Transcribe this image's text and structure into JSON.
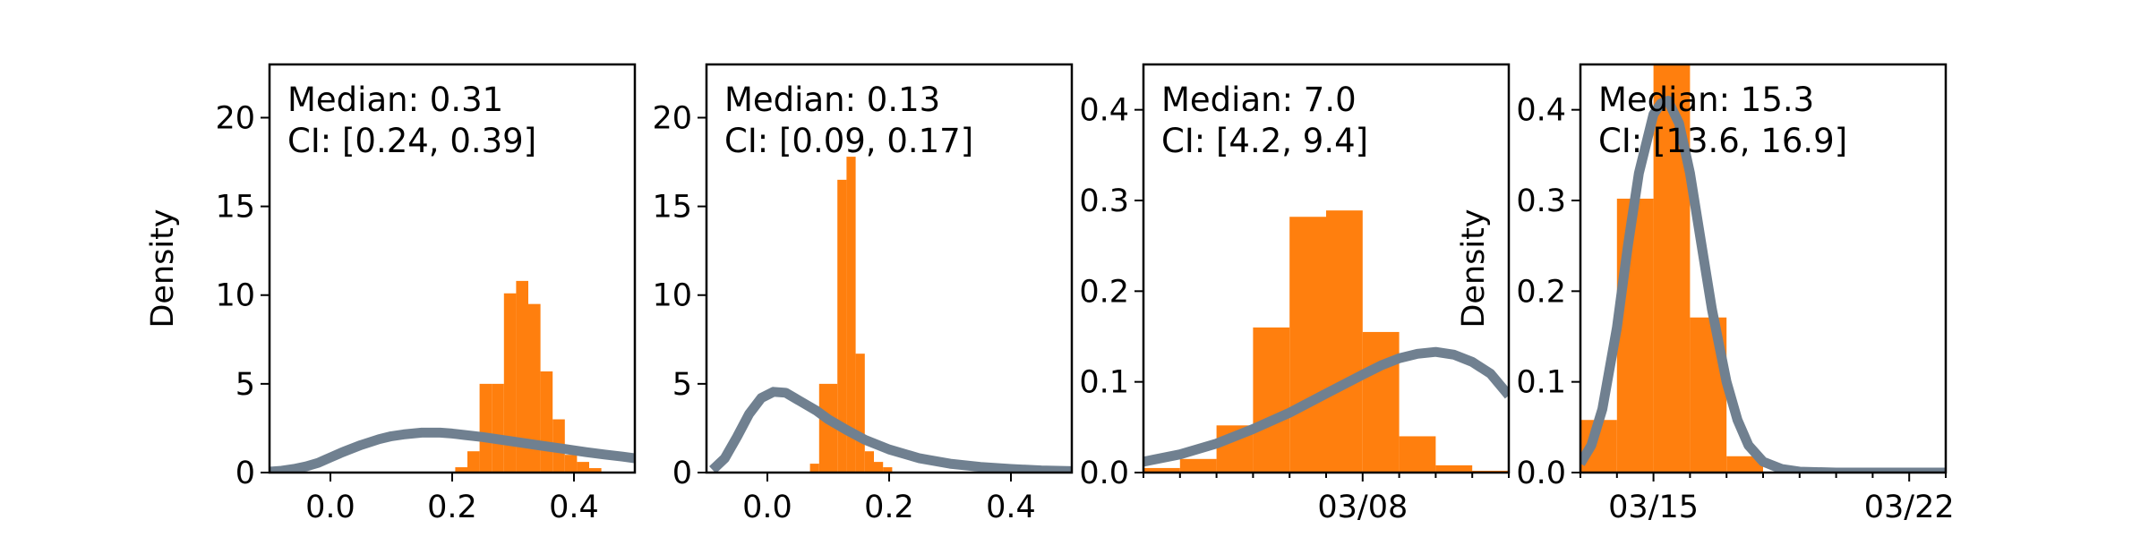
{
  "colors": {
    "histogram": "#ff7f0e",
    "curve": "#708090"
  },
  "chart_data": [
    {
      "type": "bar+line",
      "ylabel": "Density",
      "xlim": [
        -0.1,
        0.5
      ],
      "ylim": [
        0,
        23
      ],
      "xticks": [
        0.0,
        0.2,
        0.4
      ],
      "xticklabels": [
        "0.0",
        "0.2",
        "0.4"
      ],
      "yticks": [
        0,
        5,
        10,
        15,
        20
      ],
      "yticklabels": [
        "0",
        "5",
        "10",
        "15",
        "20"
      ],
      "annotation": [
        "Median: 0.31",
        "CI: [0.24, 0.39]"
      ],
      "histogram": {
        "edges": [
          0.205,
          0.225,
          0.245,
          0.265,
          0.285,
          0.305,
          0.325,
          0.345,
          0.365,
          0.385,
          0.405,
          0.425,
          0.445
        ],
        "values": [
          0.3,
          1.2,
          5.0,
          5.0,
          10.1,
          10.8,
          9.5,
          5.7,
          3.0,
          1.0,
          0.6,
          0.25
        ]
      },
      "curve": {
        "x": [
          -0.1,
          -0.08,
          -0.06,
          -0.04,
          -0.02,
          0.0,
          0.02,
          0.05,
          0.08,
          0.1,
          0.12,
          0.15,
          0.18,
          0.2,
          0.22,
          0.25,
          0.28,
          0.3,
          0.32,
          0.35,
          0.38,
          0.4,
          0.42,
          0.45,
          0.48,
          0.5
        ],
        "y": [
          0.05,
          0.1,
          0.2,
          0.35,
          0.55,
          0.85,
          1.15,
          1.55,
          1.88,
          2.05,
          2.15,
          2.25,
          2.25,
          2.2,
          2.12,
          2.0,
          1.85,
          1.75,
          1.65,
          1.5,
          1.35,
          1.25,
          1.15,
          1.02,
          0.9,
          0.8
        ]
      }
    },
    {
      "type": "bar+line",
      "ylabel": "",
      "xlim": [
        -0.1,
        0.5
      ],
      "ylim": [
        0,
        23
      ],
      "xticks": [
        0.0,
        0.2,
        0.4
      ],
      "xticklabels": [
        "0.0",
        "0.2",
        "0.4"
      ],
      "yticks": [
        0,
        5,
        10,
        15,
        20
      ],
      "yticklabels": [
        "0",
        "5",
        "10",
        "15",
        "20"
      ],
      "annotation": [
        "Median: 0.13",
        "CI: [0.09, 0.17]"
      ],
      "histogram": {
        "edges": [
          0.07,
          0.085,
          0.1,
          0.115,
          0.13,
          0.145,
          0.16,
          0.175,
          0.19,
          0.205
        ],
        "values": [
          0.5,
          5.0,
          5.0,
          16.5,
          17.8,
          6.7,
          1.2,
          0.6,
          0.3
        ]
      },
      "curve": {
        "x": [
          -0.09,
          -0.07,
          -0.05,
          -0.03,
          -0.01,
          0.01,
          0.03,
          0.05,
          0.08,
          0.1,
          0.13,
          0.16,
          0.2,
          0.25,
          0.3,
          0.35,
          0.4,
          0.45,
          0.5
        ],
        "y": [
          0.15,
          0.8,
          2.0,
          3.3,
          4.2,
          4.55,
          4.5,
          4.1,
          3.5,
          3.0,
          2.4,
          1.85,
          1.3,
          0.8,
          0.5,
          0.32,
          0.2,
          0.12,
          0.08
        ]
      }
    },
    {
      "type": "bar+line",
      "ylabel": "",
      "xlim": [
        0,
        10
      ],
      "ylim": [
        0,
        0.45
      ],
      "xticks": [
        6.0
      ],
      "xticklabels": [
        "03/08"
      ],
      "minor_xticks": [
        0,
        1,
        2,
        3,
        4,
        5,
        7,
        8,
        9,
        10
      ],
      "yticks": [
        0.0,
        0.1,
        0.2,
        0.3,
        0.4
      ],
      "yticklabels": [
        "0.0",
        "0.1",
        "0.2",
        "0.3",
        "0.4"
      ],
      "annotation": [
        "Median: 7.0",
        "CI: [4.2, 9.4]"
      ],
      "histogram": {
        "edges": [
          0.0,
          1.0,
          2.0,
          3.0,
          4.0,
          5.0,
          6.0,
          7.0,
          8.0,
          9.0,
          10.0
        ],
        "values": [
          0.005,
          0.015,
          0.052,
          0.16,
          0.282,
          0.289,
          0.155,
          0.04,
          0.008,
          0.002
        ]
      },
      "curve": {
        "x": [
          0,
          1,
          2,
          3,
          4,
          5,
          6,
          6.5,
          7,
          7.5,
          8,
          8.5,
          9,
          9.5,
          10
        ],
        "y": [
          0.012,
          0.02,
          0.032,
          0.048,
          0.066,
          0.087,
          0.108,
          0.118,
          0.126,
          0.131,
          0.133,
          0.13,
          0.122,
          0.109,
          0.085
        ]
      }
    },
    {
      "type": "bar+line",
      "ylabel": "Density",
      "xlim": [
        13,
        23
      ],
      "ylim": [
        0,
        0.45
      ],
      "xticks": [
        15.0,
        22.0
      ],
      "xticklabels": [
        "03/15",
        "03/22"
      ],
      "minor_xticks": [
        13,
        14,
        16,
        17,
        18,
        19,
        20,
        21,
        23
      ],
      "yticks": [
        0.0,
        0.1,
        0.2,
        0.3,
        0.4
      ],
      "yticklabels": [
        "0.0",
        "0.1",
        "0.2",
        "0.3",
        "0.4"
      ],
      "annotation": [
        "Median: 15.3",
        "CI: [13.6, 16.9]"
      ],
      "histogram": {
        "edges": [
          13.0,
          14.0,
          15.0,
          16.0,
          17.0,
          18.0
        ],
        "values": [
          0.058,
          0.302,
          0.47,
          0.171,
          0.018
        ]
      },
      "curve": {
        "x": [
          13.0,
          13.3,
          13.6,
          14.0,
          14.3,
          14.6,
          15.0,
          15.2,
          15.4,
          15.7,
          16.0,
          16.3,
          16.6,
          17.0,
          17.3,
          17.6,
          18.0,
          18.5,
          19.0,
          20.0,
          21.0,
          22.0,
          23.0
        ],
        "y": [
          0.01,
          0.03,
          0.07,
          0.16,
          0.25,
          0.33,
          0.395,
          0.407,
          0.41,
          0.385,
          0.33,
          0.255,
          0.18,
          0.1,
          0.058,
          0.03,
          0.012,
          0.004,
          0.001,
          0.0,
          0.0,
          0.0,
          0.0
        ]
      }
    }
  ]
}
